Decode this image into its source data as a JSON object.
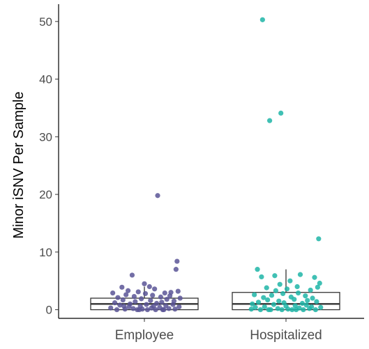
{
  "chart_data": {
    "type": "scatter",
    "subtype": "box-with-jitter",
    "title": "",
    "xlabel": "",
    "ylabel": "Minor iSNV Per Sample",
    "ylim": [
      -1.5,
      53
    ],
    "yticks": [
      0,
      10,
      20,
      30,
      40,
      50
    ],
    "grid": false,
    "legend": "none",
    "categories": [
      "Employee",
      "Hospitalized"
    ],
    "series": [
      {
        "category": "Employee",
        "color": "#5b5596",
        "box": {
          "q1": 0,
          "median": 1,
          "q3": 2,
          "whisker_low": 0,
          "whisker_high": 4
        },
        "points": [
          {
            "x": -0.33,
            "y": 0.3
          },
          {
            "x": -0.31,
            "y": 2.9
          },
          {
            "x": -0.29,
            "y": 1.2
          },
          {
            "x": -0.27,
            "y": 0.0
          },
          {
            "x": -0.26,
            "y": 2.1
          },
          {
            "x": -0.24,
            "y": 0.8
          },
          {
            "x": -0.22,
            "y": 3.9
          },
          {
            "x": -0.21,
            "y": 1.7
          },
          {
            "x": -0.19,
            "y": 0.1
          },
          {
            "x": -0.18,
            "y": 2.6
          },
          {
            "x": -0.16,
            "y": 3.3
          },
          {
            "x": -0.15,
            "y": 0.5
          },
          {
            "x": -0.14,
            "y": 1.0
          },
          {
            "x": -0.12,
            "y": 6.0
          },
          {
            "x": -0.11,
            "y": 0.2
          },
          {
            "x": -0.1,
            "y": 2.3
          },
          {
            "x": -0.09,
            "y": 1.4
          },
          {
            "x": -0.07,
            "y": 0.0
          },
          {
            "x": -0.06,
            "y": 3.1
          },
          {
            "x": -0.04,
            "y": 0.6
          },
          {
            "x": -0.03,
            "y": 1.9
          },
          {
            "x": -0.02,
            "y": 0.1
          },
          {
            "x": 0.0,
            "y": 4.5
          },
          {
            "x": 0.01,
            "y": 2.8
          },
          {
            "x": 0.02,
            "y": 0.9
          },
          {
            "x": 0.03,
            "y": 0.0
          },
          {
            "x": 0.05,
            "y": 4.0
          },
          {
            "x": 0.06,
            "y": 1.6
          },
          {
            "x": 0.07,
            "y": 0.3
          },
          {
            "x": 0.08,
            "y": 2.5
          },
          {
            "x": 0.1,
            "y": 3.6
          },
          {
            "x": 0.11,
            "y": 0.0
          },
          {
            "x": 0.12,
            "y": 1.1
          },
          {
            "x": 0.13,
            "y": 19.8
          },
          {
            "x": 0.15,
            "y": 0.4
          },
          {
            "x": 0.16,
            "y": 2.2
          },
          {
            "x": 0.17,
            "y": 1.3
          },
          {
            "x": 0.18,
            "y": 0.0
          },
          {
            "x": 0.2,
            "y": 2.9
          },
          {
            "x": 0.21,
            "y": 0.7
          },
          {
            "x": 0.22,
            "y": 1.8
          },
          {
            "x": 0.24,
            "y": 0.2
          },
          {
            "x": 0.25,
            "y": 2.4
          },
          {
            "x": 0.26,
            "y": 3.0
          },
          {
            "x": 0.28,
            "y": 0.9
          },
          {
            "x": 0.29,
            "y": 1.5
          },
          {
            "x": 0.3,
            "y": 0.1
          },
          {
            "x": 0.31,
            "y": 7.0
          },
          {
            "x": 0.32,
            "y": 8.4
          },
          {
            "x": 0.33,
            "y": 3.2
          },
          {
            "x": 0.34,
            "y": 0.5
          },
          {
            "x": 0.35,
            "y": 2.0
          },
          {
            "x": -0.2,
            "y": 0.6
          },
          {
            "x": 0.09,
            "y": 0.6
          },
          {
            "x": -0.05,
            "y": 0.0
          },
          {
            "x": 0.19,
            "y": 0.0
          }
        ]
      },
      {
        "category": "Hospitalized",
        "color": "#1fb5a7",
        "box": {
          "q1": 0,
          "median": 1,
          "q3": 3,
          "whisker_low": 0,
          "whisker_high": 7
        },
        "points": [
          {
            "x": -0.34,
            "y": 0.1
          },
          {
            "x": -0.33,
            "y": 1.0
          },
          {
            "x": -0.31,
            "y": 2.6
          },
          {
            "x": -0.3,
            "y": 0.4
          },
          {
            "x": -0.28,
            "y": 7.0
          },
          {
            "x": -0.27,
            "y": 1.3
          },
          {
            "x": -0.25,
            "y": 0.0
          },
          {
            "x": -0.24,
            "y": 5.7
          },
          {
            "x": -0.22,
            "y": 2.1
          },
          {
            "x": -0.21,
            "y": 0.5
          },
          {
            "x": -0.19,
            "y": 3.8
          },
          {
            "x": -0.18,
            "y": 1.7
          },
          {
            "x": -0.16,
            "y": 32.8
          },
          {
            "x": -0.15,
            "y": 0.0
          },
          {
            "x": -0.14,
            "y": 2.5
          },
          {
            "x": -0.12,
            "y": 0.9
          },
          {
            "x": -0.11,
            "y": 5.9
          },
          {
            "x": -0.1,
            "y": 3.3
          },
          {
            "x": -0.08,
            "y": 0.2
          },
          {
            "x": -0.07,
            "y": 1.5
          },
          {
            "x": -0.06,
            "y": 4.4
          },
          {
            "x": -0.04,
            "y": 0.0
          },
          {
            "x": -0.03,
            "y": 2.8
          },
          {
            "x": -0.02,
            "y": 1.2
          },
          {
            "x": 0.0,
            "y": 0.6
          },
          {
            "x": 0.01,
            "y": 3.6
          },
          {
            "x": 0.02,
            "y": 0.1
          },
          {
            "x": 0.04,
            "y": 5.0
          },
          {
            "x": 0.05,
            "y": 2.2
          },
          {
            "x": 0.06,
            "y": 0.0
          },
          {
            "x": 0.08,
            "y": 1.8
          },
          {
            "x": 0.09,
            "y": 0.7
          },
          {
            "x": 0.11,
            "y": 4.0
          },
          {
            "x": 0.12,
            "y": 2.9
          },
          {
            "x": 0.13,
            "y": 0.3
          },
          {
            "x": 0.14,
            "y": 6.1
          },
          {
            "x": 0.16,
            "y": 1.1
          },
          {
            "x": 0.17,
            "y": 0.0
          },
          {
            "x": 0.19,
            "y": 2.4
          },
          {
            "x": 0.2,
            "y": 0.8
          },
          {
            "x": 0.21,
            "y": 1.6
          },
          {
            "x": 0.23,
            "y": 0.2
          },
          {
            "x": 0.24,
            "y": 3.4
          },
          {
            "x": 0.25,
            "y": 0.5
          },
          {
            "x": 0.26,
            "y": 2.0
          },
          {
            "x": 0.28,
            "y": 5.6
          },
          {
            "x": 0.29,
            "y": 0.0
          },
          {
            "x": 0.3,
            "y": 1.4
          },
          {
            "x": 0.31,
            "y": 3.9
          },
          {
            "x": 0.32,
            "y": 12.3
          },
          {
            "x": 0.33,
            "y": 4.6
          },
          {
            "x": 0.34,
            "y": 0.4
          },
          {
            "x": -0.23,
            "y": 50.3
          },
          {
            "x": -0.05,
            "y": 34.1
          },
          {
            "x": 0.1,
            "y": 0.0
          },
          {
            "x": -0.17,
            "y": 0.0
          }
        ]
      }
    ]
  }
}
